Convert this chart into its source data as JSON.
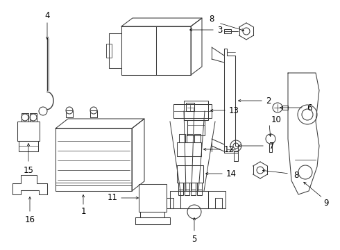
{
  "bg_color": "#ffffff",
  "line_color": "#3a3a3a",
  "fig_width": 4.9,
  "fig_height": 3.6,
  "dpi": 100,
  "font_size": 8.5,
  "lw": 0.75
}
